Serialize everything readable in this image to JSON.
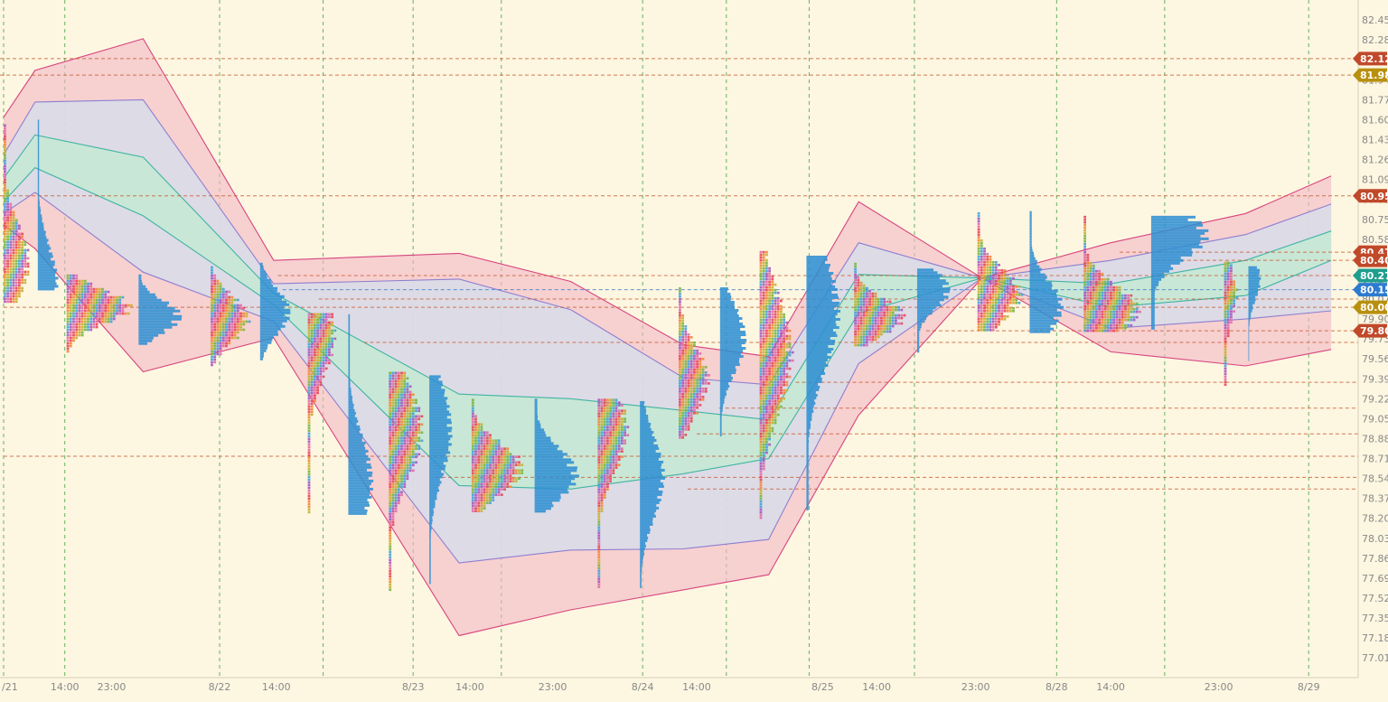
{
  "chart_data": {
    "type": "market-profile",
    "title": "",
    "colors": {
      "background": "#fdf6e1",
      "outer_band_fill": "#f4b8c4",
      "outer_band_stroke": "#d6457e",
      "inner_band_fill": "#d9dbe8",
      "inner_band_stroke": "#8e7fcf",
      "core_band_fill": "#c6e8d4",
      "core_band_stroke": "#3fb4a3",
      "volume_profile": "#2f8fd3",
      "tpo_palette": [
        "#e8495b",
        "#f08a3c",
        "#c7b236",
        "#7ab648",
        "#4aa3d6",
        "#a65bc0",
        "#e06fa8"
      ],
      "time_grid": "#4aa84a",
      "level_red": "#c65a30",
      "level_blue": "#3a7cc7",
      "axis_text": "#888888"
    },
    "y_axis": {
      "range": [
        76.95,
        82.52
      ],
      "ticks": [
        "82.45",
        "82.28",
        "82.12",
        "81.94",
        "81.77",
        "81.60",
        "81.43",
        "81.26",
        "81.09",
        "80.92",
        "80.75",
        "80.58",
        "80.41",
        "80.24",
        "80.07",
        "79.90",
        "79.73",
        "79.56",
        "79.39",
        "79.22",
        "79.05",
        "78.88",
        "78.71",
        "78.54",
        "78.37",
        "78.20",
        "78.03",
        "77.86",
        "77.69",
        "77.52",
        "77.35",
        "77.18",
        "77.01"
      ]
    },
    "x_axis": {
      "labels": [
        {
          "t": 0,
          "text": "/21"
        },
        {
          "t": 6.8,
          "text": "14:00"
        },
        {
          "t": 12,
          "text": "23:00"
        },
        {
          "t": 24,
          "text": "8/22"
        },
        {
          "t": 30.3,
          "text": "14:00"
        },
        {
          "t": 45.5,
          "text": "8/23"
        },
        {
          "t": 51.8,
          "text": "14:00"
        },
        {
          "t": 61,
          "text": "23:00"
        },
        {
          "t": 71,
          "text": "8/24"
        },
        {
          "t": 77,
          "text": "14:00"
        },
        {
          "t": 91,
          "text": "8/25"
        },
        {
          "t": 97,
          "text": "14:00"
        },
        {
          "t": 108,
          "text": "23:00"
        },
        {
          "t": 117,
          "text": "8/28"
        },
        {
          "t": 123,
          "text": "14:00"
        },
        {
          "t": 135,
          "text": "23:00"
        },
        {
          "t": 145,
          "text": "8/29"
        }
      ],
      "range": [
        -0.4,
        150.5
      ],
      "grid_t": [
        0,
        6.8,
        24,
        35.5,
        45.5,
        55.3,
        71,
        80.3,
        89.5,
        101.2,
        117,
        129,
        145
      ]
    },
    "bands": {
      "t": [
        0,
        3.5,
        15.5,
        30,
        50.6,
        63,
        75.5,
        85,
        95,
        108.7,
        123,
        138,
        147.5
      ],
      "outer_upper": [
        81.62,
        82.02,
        82.29,
        80.4,
        80.46,
        80.22,
        79.68,
        79.58,
        80.9,
        80.25,
        80.55,
        80.8,
        81.12
      ],
      "inner_upper": [
        81.3,
        81.75,
        81.77,
        80.2,
        80.24,
        79.98,
        79.4,
        79.34,
        80.55,
        80.25,
        80.4,
        80.62,
        80.88
      ],
      "core_upper": [
        81.1,
        81.47,
        81.28,
        80.12,
        79.26,
        79.22,
        79.12,
        79.04,
        80.28,
        80.25,
        80.2,
        80.4,
        80.65
      ],
      "core_lower": [
        80.9,
        81.19,
        80.78,
        80.02,
        78.48,
        78.45,
        78.58,
        78.71,
        79.95,
        80.25,
        80.0,
        80.1,
        80.4
      ],
      "inner_lower": [
        80.8,
        80.98,
        80.3,
        79.88,
        77.82,
        77.93,
        77.94,
        78.02,
        79.52,
        80.25,
        79.82,
        79.9,
        79.97
      ],
      "outer_lower": [
        80.7,
        80.5,
        79.45,
        79.74,
        77.2,
        77.42,
        77.59,
        77.72,
        79.08,
        80.25,
        79.62,
        79.5,
        79.64
      ]
    },
    "profiles": [
      {
        "kind": "tpo",
        "t": 0.0,
        "y_low": 80.05,
        "y_high": 81.56,
        "poc": 80.38,
        "width": 3.0
      },
      {
        "kind": "vol",
        "t": 3.8,
        "y_low": 80.15,
        "y_high": 81.6,
        "poc": 80.2,
        "width": 2.3
      },
      {
        "kind": "tpo",
        "t": 7.0,
        "y_low": 79.62,
        "y_high": 80.28,
        "poc": 80.0,
        "width": 7.5
      },
      {
        "kind": "vol",
        "t": 15.0,
        "y_low": 79.68,
        "y_high": 80.28,
        "poc": 79.92,
        "width": 5.0
      },
      {
        "kind": "tpo",
        "t": 23.0,
        "y_low": 79.5,
        "y_high": 80.35,
        "poc": 79.9,
        "width": 4.5
      },
      {
        "kind": "vol",
        "t": 28.5,
        "y_low": 79.55,
        "y_high": 80.38,
        "poc": 79.96,
        "width": 3.5
      },
      {
        "kind": "tpo",
        "t": 33.8,
        "y_low": 78.25,
        "y_high": 79.95,
        "poc": 79.78,
        "width": 3.2
      },
      {
        "kind": "vol",
        "t": 38.3,
        "y_low": 78.25,
        "y_high": 79.94,
        "poc": 78.52,
        "width": 2.8
      },
      {
        "kind": "tpo",
        "t": 42.8,
        "y_low": 77.6,
        "y_high": 79.45,
        "poc": 78.95,
        "width": 4.0
      },
      {
        "kind": "vol",
        "t": 47.3,
        "y_low": 77.66,
        "y_high": 79.42,
        "poc": 78.95,
        "width": 2.6
      },
      {
        "kind": "tpo",
        "t": 52.0,
        "y_low": 78.26,
        "y_high": 79.22,
        "poc": 78.62,
        "width": 6.0
      },
      {
        "kind": "vol",
        "t": 59.0,
        "y_low": 78.26,
        "y_high": 79.22,
        "poc": 78.58,
        "width": 5.0
      },
      {
        "kind": "tpo",
        "t": 66.0,
        "y_low": 77.61,
        "y_high": 79.22,
        "poc": 78.95,
        "width": 3.5
      },
      {
        "kind": "vol",
        "t": 70.7,
        "y_low": 77.62,
        "y_high": 79.2,
        "poc": 78.55,
        "width": 2.8
      },
      {
        "kind": "tpo",
        "t": 75.0,
        "y_low": 78.88,
        "y_high": 80.17,
        "poc": 79.38,
        "width": 3.5
      },
      {
        "kind": "vol",
        "t": 79.6,
        "y_low": 78.9,
        "y_high": 80.17,
        "poc": 79.73,
        "width": 3.0
      },
      {
        "kind": "tpo",
        "t": 84.0,
        "y_low": 78.2,
        "y_high": 80.48,
        "poc": 79.6,
        "width": 3.8
      },
      {
        "kind": "vol",
        "t": 89.2,
        "y_low": 78.28,
        "y_high": 80.44,
        "poc": 79.96,
        "width": 3.8
      },
      {
        "kind": "tpo",
        "t": 94.5,
        "y_low": 79.68,
        "y_high": 80.38,
        "poc": 79.92,
        "width": 6.0
      },
      {
        "kind": "vol",
        "t": 101.5,
        "y_low": 79.62,
        "y_high": 80.33,
        "poc": 80.15,
        "width": 3.8
      },
      {
        "kind": "tpo",
        "t": 108.2,
        "y_low": 79.8,
        "y_high": 80.81,
        "poc": 80.1,
        "width": 5.0
      },
      {
        "kind": "vol",
        "t": 114.0,
        "y_low": 79.8,
        "y_high": 80.82,
        "poc": 80.0,
        "width": 3.8
      },
      {
        "kind": "tpo",
        "t": 120.0,
        "y_low": 79.8,
        "y_high": 80.78,
        "poc": 79.97,
        "width": 6.5
      },
      {
        "kind": "vol",
        "t": 127.5,
        "y_low": 79.83,
        "y_high": 80.78,
        "poc": 80.62,
        "width": 6.5
      },
      {
        "kind": "tpo",
        "t": 135.6,
        "y_low": 79.34,
        "y_high": 80.39,
        "poc": 80.1,
        "width": 1.5
      },
      {
        "kind": "vol",
        "t": 138.3,
        "y_low": 79.55,
        "y_high": 80.35,
        "poc": 80.24,
        "width": 1.4
      }
    ],
    "levels": [
      {
        "y": 82.12,
        "t_from": -0.4,
        "color": "#c65a30",
        "dash": "4,3"
      },
      {
        "y": 81.98,
        "t_from": -0.4,
        "color": "#c65a30",
        "dash": "4,3"
      },
      {
        "y": 80.95,
        "t_from": -0.4,
        "color": "#c65a30",
        "dash": "4,3"
      },
      {
        "y": 80.47,
        "t_from": 124.0,
        "color": "#c65a30",
        "dash": "4,3"
      },
      {
        "y": 80.4,
        "t_from": 128.0,
        "color": "#c65a30",
        "dash": "4,3"
      },
      {
        "y": 80.27,
        "t_from": 30.5,
        "color": "#c65a30",
        "dash": "4,3"
      },
      {
        "y": 80.15,
        "t_from": 31.0,
        "color": "#3a7cc7",
        "dash": "4,3"
      },
      {
        "y": 80.07,
        "t_from": 35.0,
        "color": "#c65a30",
        "dash": "4,3"
      },
      {
        "y": 80.0,
        "t_from": 0.0,
        "color": "#c65a30",
        "dash": "4,3"
      },
      {
        "y": 79.8,
        "t_from": 102.5,
        "color": "#c65a30",
        "dash": "4,3"
      },
      {
        "y": 79.7,
        "t_from": 40.0,
        "color": "#c65a30",
        "dash": "4,3"
      },
      {
        "y": 79.36,
        "t_from": 88.0,
        "color": "#c65a30",
        "dash": "4,3"
      },
      {
        "y": 79.14,
        "t_from": 79.5,
        "color": "#c65a30",
        "dash": "4,3"
      },
      {
        "y": 78.92,
        "t_from": 77.0,
        "color": "#c65a30",
        "dash": "4,3"
      },
      {
        "y": 78.73,
        "t_from": 0.0,
        "color": "#c65a30",
        "dash": "4,3"
      },
      {
        "y": 78.55,
        "t_from": 48.0,
        "color": "#c65a30",
        "dash": "4,3"
      },
      {
        "y": 78.45,
        "t_from": 76.0,
        "color": "#c65a30",
        "dash": "4,3"
      }
    ],
    "price_tags": [
      {
        "value": "82.12",
        "y": 82.12,
        "color": "#c0492a"
      },
      {
        "value": "81.98",
        "y": 81.98,
        "color": "#b8900e"
      },
      {
        "value": "80.95",
        "y": 80.95,
        "color": "#c0492a"
      },
      {
        "value": "80.47",
        "y": 80.47,
        "color": "#c0492a"
      },
      {
        "value": "80.40",
        "y": 80.4,
        "color": "#c0492a"
      },
      {
        "value": "80.27",
        "y": 80.27,
        "color": "#1f9e8e"
      },
      {
        "value": "80.15",
        "y": 80.15,
        "color": "#2d7bcf"
      },
      {
        "value": "80.00",
        "y": 80.0,
        "color": "#b8900e"
      },
      {
        "value": "79.80",
        "y": 79.8,
        "color": "#c0492a"
      }
    ],
    "grid": true,
    "legend": "none"
  }
}
